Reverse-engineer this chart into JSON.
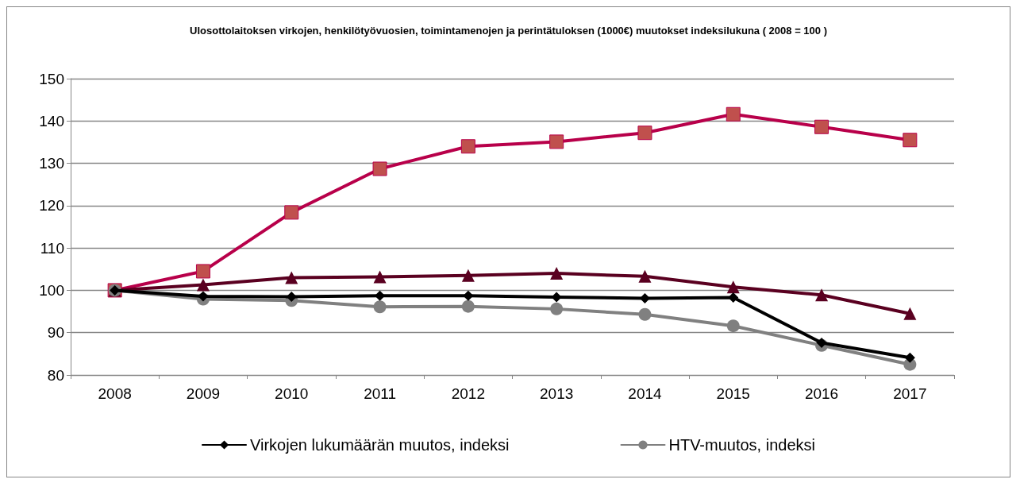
{
  "chart_data": {
    "type": "line",
    "title": "Ulosottolaitoksen virkojen, henkilötyövuosien, toimintamenojen ja perintätuloksen (1000€) muutokset indeksilukuna ( 2008 = 100 )",
    "categories": [
      "2008",
      "2009",
      "2010",
      "2011",
      "2012",
      "2013",
      "2014",
      "2015",
      "2016",
      "2017"
    ],
    "series": [
      {
        "name": "Virkojen lukumäärän muutos, indeksi",
        "color": "#000000",
        "marker": "diamond",
        "values": [
          100,
          98.6,
          98.5,
          98.7,
          98.7,
          98.4,
          98.1,
          98.3,
          87.6,
          84.1
        ]
      },
      {
        "name": "HTV-muutos, indeksi",
        "color": "#808080",
        "marker": "circle",
        "values": [
          100,
          97.9,
          97.6,
          96.1,
          96.2,
          95.6,
          94.3,
          91.6,
          87.0,
          82.5
        ]
      },
      {
        "color": "#5a0020",
        "marker": "triangle",
        "values": [
          100,
          101.3,
          103.0,
          103.2,
          103.5,
          104.0,
          103.3,
          100.8,
          98.9,
          94.5
        ]
      },
      {
        "color": "#b8004a",
        "marker": "square",
        "values": [
          100,
          104.5,
          118.4,
          128.7,
          134.0,
          135.1,
          137.2,
          141.6,
          138.6,
          135.5
        ]
      }
    ],
    "ylim": [
      80,
      150
    ],
    "yticks": [
      80,
      90,
      100,
      110,
      120,
      130,
      140,
      150
    ],
    "grid": "y",
    "legend": "bottom",
    "line_style": "solid"
  }
}
